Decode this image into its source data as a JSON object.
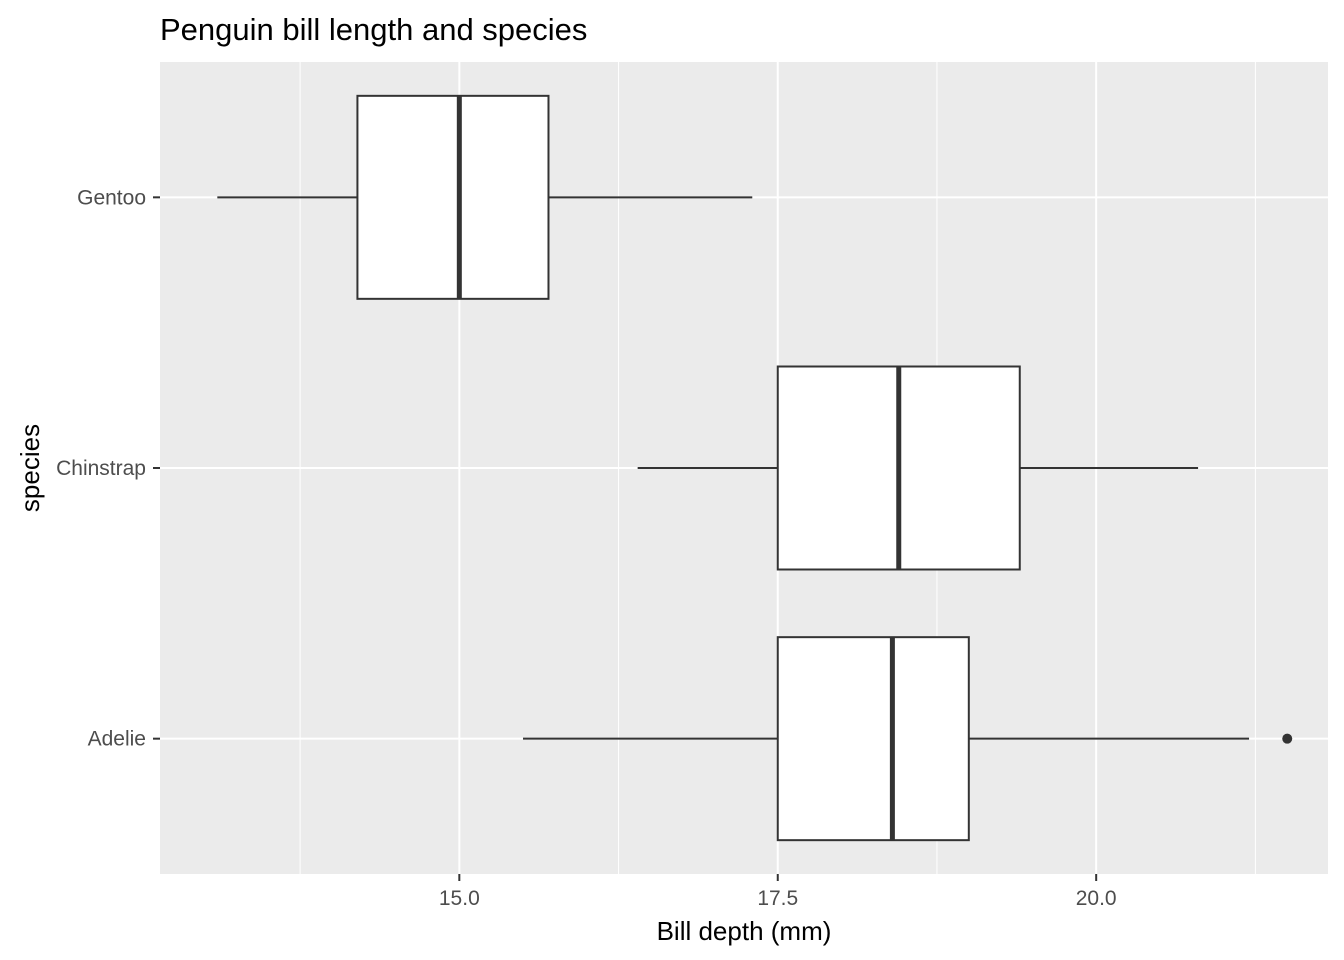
{
  "chart_data": {
    "type": "boxplot",
    "orientation": "horizontal",
    "title": "Penguin bill length and species",
    "xlabel": "Bill depth (mm)",
    "ylabel": "species",
    "xlim": [
      13.1,
      21.5
    ],
    "x_ticks": [
      15.0,
      17.5,
      20.0
    ],
    "x_tick_labels": [
      "15.0",
      "17.5",
      "20.0"
    ],
    "categories": [
      "Gentoo",
      "Chinstrap",
      "Adelie"
    ],
    "boxes": [
      {
        "category": "Gentoo",
        "whisker_low": 13.1,
        "q1": 14.2,
        "median": 15.0,
        "q3": 15.7,
        "whisker_high": 17.3,
        "outliers": []
      },
      {
        "category": "Chinstrap",
        "whisker_low": 16.4,
        "q1": 17.5,
        "median": 18.45,
        "q3": 19.4,
        "whisker_high": 20.8,
        "outliers": []
      },
      {
        "category": "Adelie",
        "whisker_low": 15.5,
        "q1": 17.5,
        "median": 18.4,
        "q3": 19.0,
        "whisker_high": 21.2,
        "outliers": [
          21.5
        ]
      }
    ],
    "grid": true,
    "colors": {
      "panel_background": "#ebebeb",
      "grid_major": "#ffffff",
      "box_fill": "#ffffff",
      "box_stroke": "#333333"
    }
  }
}
